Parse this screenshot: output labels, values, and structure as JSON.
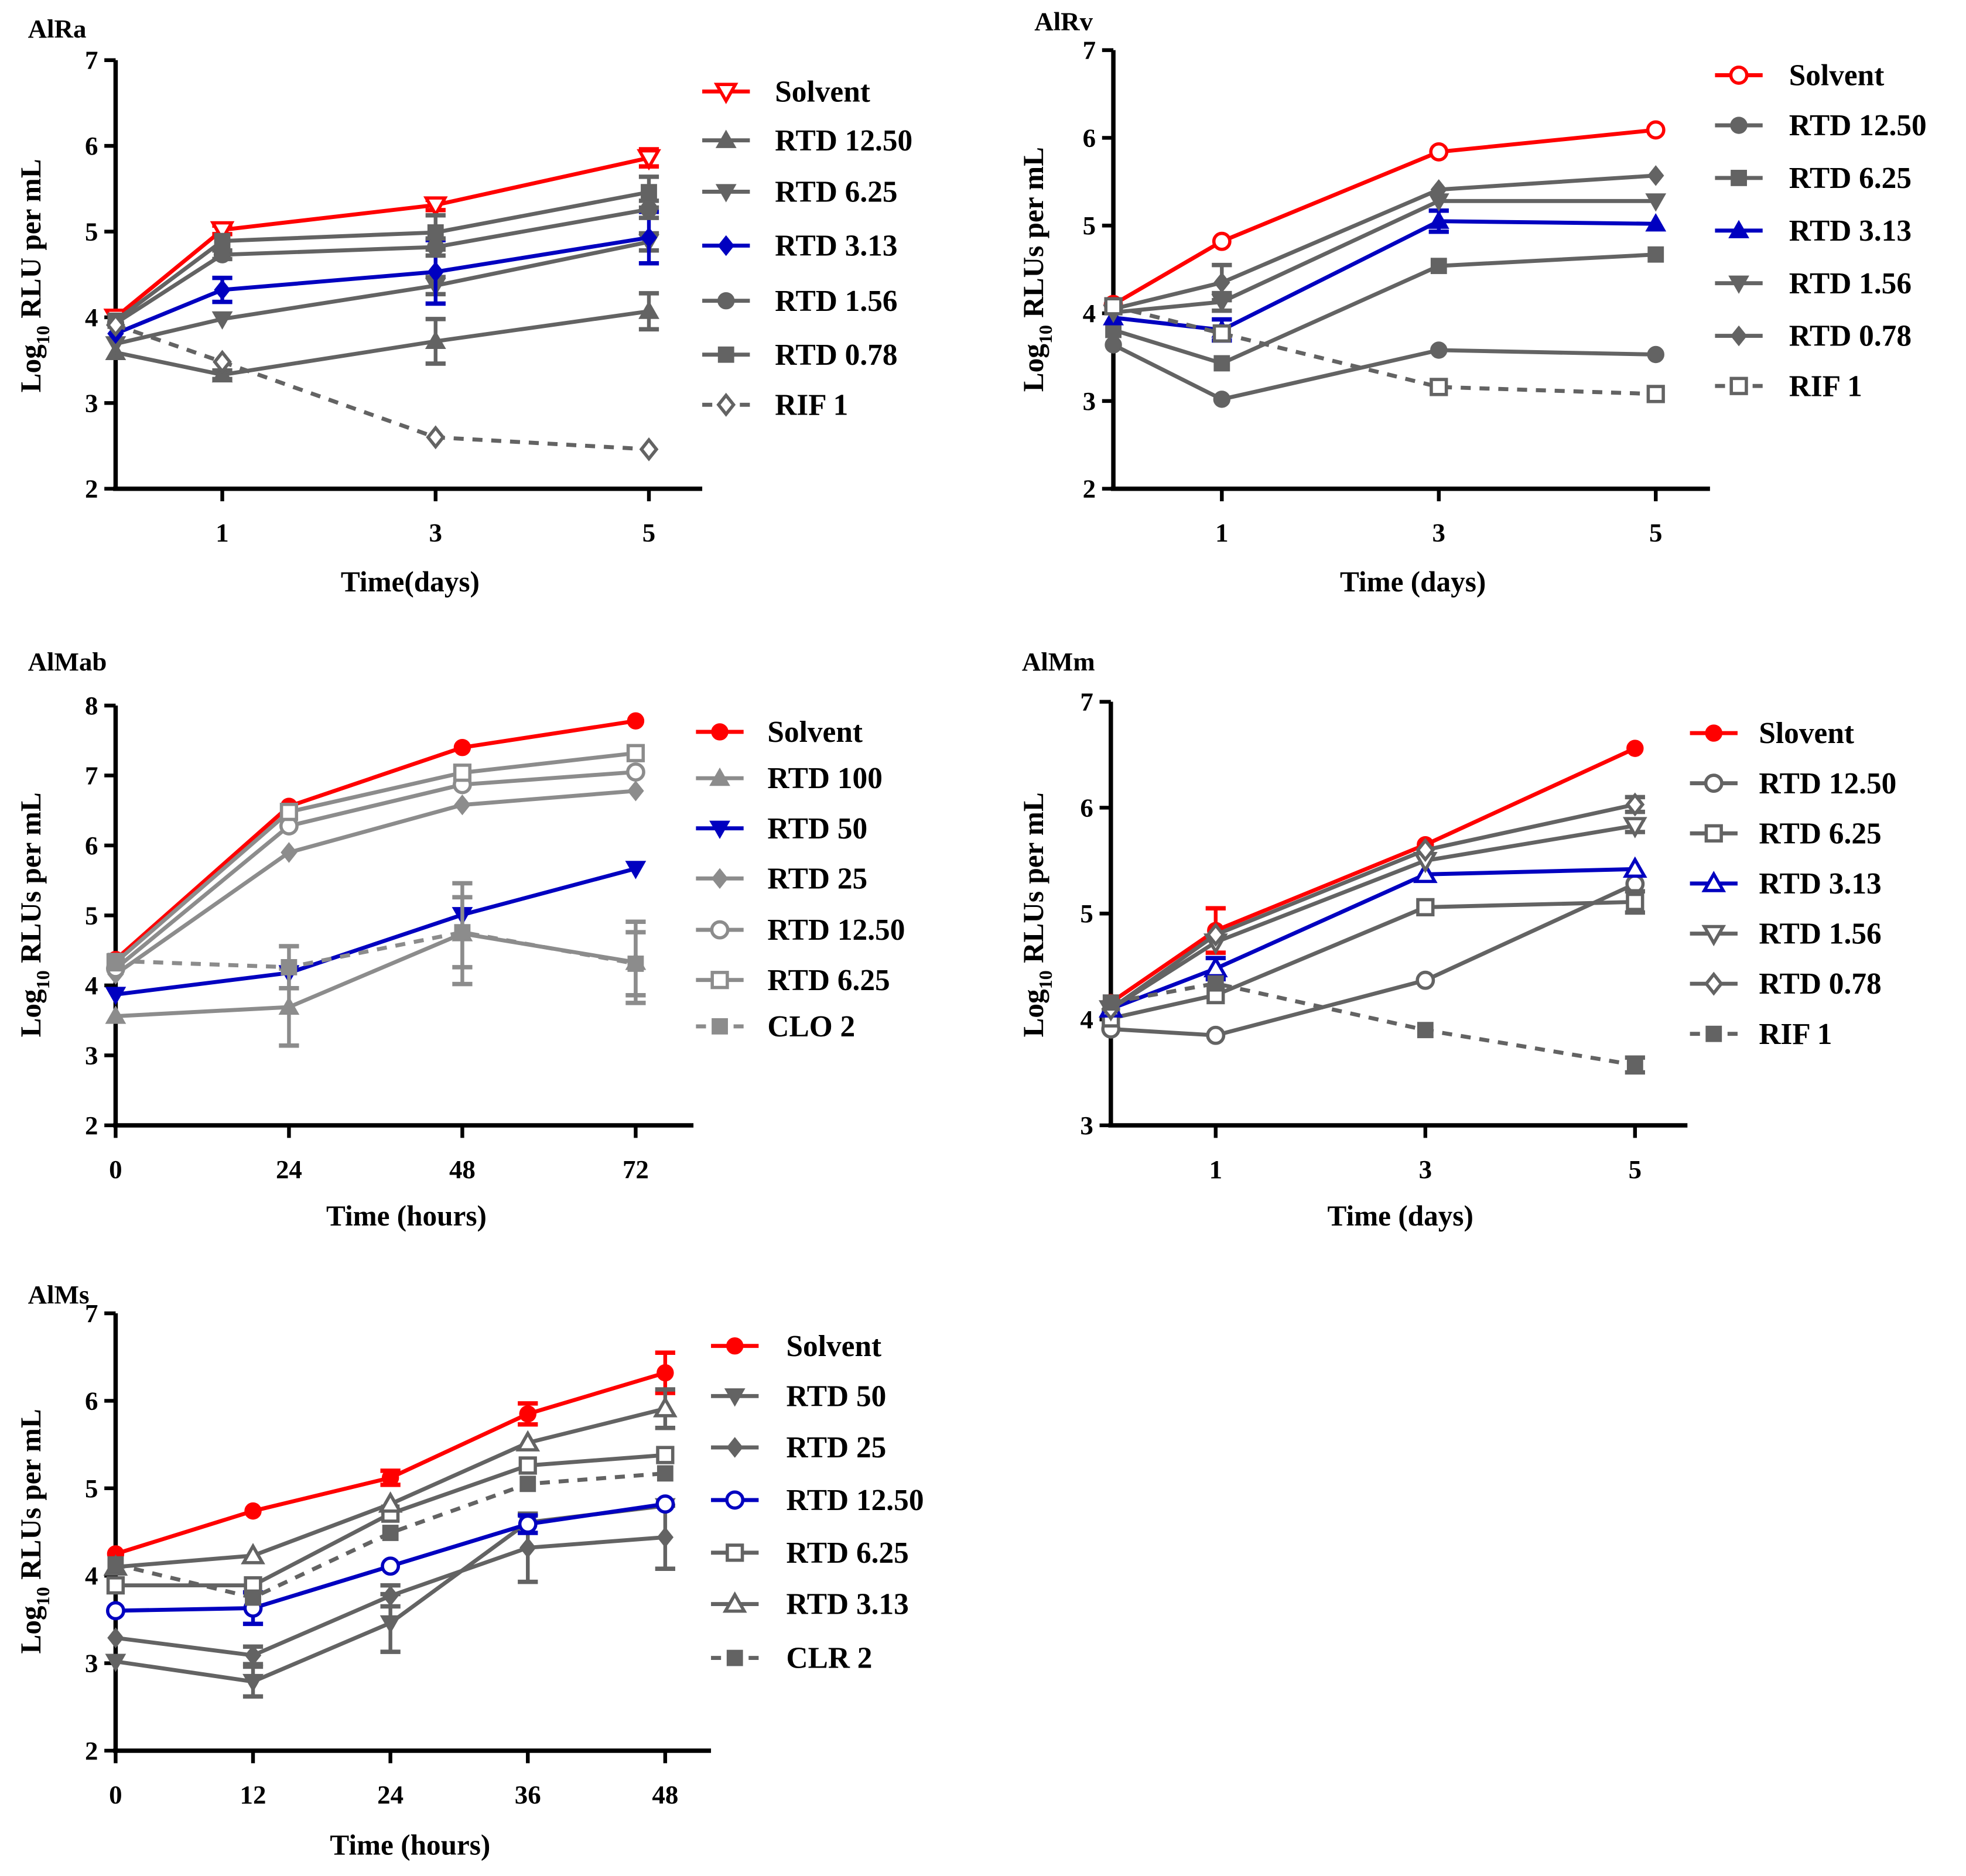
{
  "colors": {
    "red": "#ff0000",
    "blue": "#0000c0",
    "gray": "#636363",
    "lightgray": "#8c8c8c"
  },
  "chart_data": [
    {
      "type": "line",
      "title": "AlRa",
      "xlabel": "Time(days)",
      "ylabel": {
        "pre": "Log",
        "sub": "10",
        "post": " RLU per mL"
      },
      "xlim": [
        0,
        5.5
      ],
      "ylim": [
        2,
        7
      ],
      "xticks": [
        1,
        3,
        5
      ],
      "yticks": [
        2,
        3,
        4,
        5,
        6,
        7
      ],
      "x": [
        0,
        1,
        3,
        5
      ],
      "legend": "right",
      "grid": false,
      "series": [
        {
          "name": "Solvent",
          "color": "#ff0000",
          "marker": "triangle-down-open",
          "dashed": false,
          "values": [
            4.0,
            5.02,
            5.31,
            5.86
          ],
          "err": [
            null,
            0.05,
            0.06,
            0.1
          ]
        },
        {
          "name": "RTD 12.50",
          "color": "#636363",
          "marker": "triangle-up",
          "dashed": false,
          "values": [
            3.59,
            3.33,
            3.72,
            4.07
          ],
          "err": [
            null,
            0.05,
            0.26,
            0.21
          ]
        },
        {
          "name": "RTD 6.25",
          "color": "#636363",
          "marker": "triangle-down",
          "dashed": false,
          "values": [
            3.69,
            3.98,
            4.37,
            4.88
          ],
          "err": [
            null,
            null,
            0.1,
            0.1
          ]
        },
        {
          "name": "RTD 3.13",
          "color": "#0000c0",
          "marker": "diamond",
          "dashed": false,
          "values": [
            3.81,
            4.32,
            4.53,
            4.93
          ],
          "err": [
            null,
            0.14,
            0.37,
            0.3
          ]
        },
        {
          "name": "RTD 1.56",
          "color": "#636363",
          "marker": "circle",
          "dashed": false,
          "values": [
            3.93,
            4.73,
            4.82,
            5.26
          ],
          "err": [
            null,
            0.05,
            0.1,
            0.1
          ]
        },
        {
          "name": "RTD 0.78",
          "color": "#636363",
          "marker": "square",
          "dashed": false,
          "values": [
            3.96,
            4.89,
            4.99,
            5.46
          ],
          "err": [
            null,
            null,
            0.2,
            0.18
          ]
        },
        {
          "name": "RIF 1",
          "color": "#636363",
          "marker": "diamond-open",
          "dashed": true,
          "values": [
            3.91,
            3.48,
            2.6,
            2.46
          ],
          "err": [
            null,
            null,
            null,
            null
          ]
        }
      ]
    },
    {
      "type": "line",
      "title": "AlRv",
      "xlabel": "Time (days)",
      "ylabel": {
        "pre": "Log",
        "sub": "10",
        "post": " RLUs per mL"
      },
      "xlim": [
        0,
        5.5
      ],
      "ylim": [
        2,
        7
      ],
      "xticks": [
        1,
        3,
        5
      ],
      "yticks": [
        2,
        3,
        4,
        5,
        6,
        7
      ],
      "x": [
        0,
        1,
        3,
        5
      ],
      "legend": "right",
      "grid": false,
      "series": [
        {
          "name": "Solvent",
          "color": "#ff0000",
          "marker": "circle-open",
          "dashed": false,
          "values": [
            4.1,
            4.82,
            5.84,
            6.09
          ],
          "err": [
            null,
            null,
            null,
            null
          ]
        },
        {
          "name": "RTD 12.50",
          "color": "#636363",
          "marker": "circle",
          "dashed": false,
          "values": [
            3.64,
            3.02,
            3.58,
            3.53
          ],
          "err": [
            null,
            null,
            null,
            null
          ]
        },
        {
          "name": "RTD 6.25",
          "color": "#636363",
          "marker": "square",
          "dashed": false,
          "values": [
            3.81,
            3.43,
            4.54,
            4.67
          ],
          "err": [
            null,
            null,
            null,
            null
          ]
        },
        {
          "name": "RTD 3.13",
          "color": "#0000c0",
          "marker": "triangle-up",
          "dashed": false,
          "values": [
            3.95,
            3.81,
            5.05,
            5.02
          ],
          "err": [
            null,
            0.12,
            0.12,
            null
          ]
        },
        {
          "name": "RTD 1.56",
          "color": "#636363",
          "marker": "triangle-down",
          "dashed": false,
          "values": [
            4.01,
            4.13,
            5.28,
            5.28
          ],
          "err": [
            null,
            0.1,
            null,
            null
          ]
        },
        {
          "name": "RTD 0.78",
          "color": "#636363",
          "marker": "diamond",
          "dashed": false,
          "values": [
            4.05,
            4.35,
            5.41,
            5.57
          ],
          "err": [
            null,
            0.2,
            null,
            null
          ]
        },
        {
          "name": "RIF 1",
          "color": "#636363",
          "marker": "square-open",
          "dashed": true,
          "values": [
            4.08,
            3.77,
            3.16,
            3.08
          ],
          "err": [
            null,
            null,
            null,
            null
          ]
        }
      ]
    },
    {
      "type": "line",
      "title": "AlMab",
      "xlabel": "Time (hours)",
      "ylabel": {
        "pre": "Log",
        "sub": "10",
        "post": " RLUs per mL"
      },
      "xlim": [
        0,
        80
      ],
      "ylim": [
        2,
        8
      ],
      "xticks": [
        0,
        24,
        48,
        72
      ],
      "yticks": [
        2,
        3,
        4,
        5,
        6,
        7,
        8
      ],
      "x": [
        0,
        24,
        48,
        72
      ],
      "legend": "right",
      "grid": false,
      "series": [
        {
          "name": "Solvent",
          "color": "#ff0000",
          "marker": "circle",
          "dashed": false,
          "values": [
            4.37,
            6.56,
            7.4,
            7.78
          ],
          "err": [
            null,
            null,
            null,
            null
          ]
        },
        {
          "name": "RTD 100",
          "color": "#8c8c8c",
          "marker": "triangle-up",
          "dashed": false,
          "values": [
            3.56,
            3.69,
            4.74,
            4.33
          ],
          "err": [
            null,
            0.55,
            0.72,
            0.58
          ]
        },
        {
          "name": "RTD 50",
          "color": "#0000c0",
          "marker": "triangle-down",
          "dashed": false,
          "values": [
            3.87,
            4.18,
            5.01,
            5.67
          ],
          "err": [
            null,
            null,
            null,
            null
          ]
        },
        {
          "name": "RTD 25",
          "color": "#8c8c8c",
          "marker": "diamond",
          "dashed": false,
          "values": [
            4.16,
            5.9,
            6.58,
            6.78
          ],
          "err": [
            null,
            null,
            null,
            null
          ]
        },
        {
          "name": "RTD 12.50",
          "color": "#8c8c8c",
          "marker": "circle-open",
          "dashed": false,
          "values": [
            4.24,
            6.28,
            6.87,
            7.05
          ],
          "err": [
            null,
            null,
            null,
            null
          ]
        },
        {
          "name": "RTD 6.25",
          "color": "#8c8c8c",
          "marker": "square-open",
          "dashed": false,
          "values": [
            4.33,
            6.48,
            7.04,
            7.32
          ],
          "err": [
            null,
            null,
            null,
            null
          ]
        },
        {
          "name": "CLO 2",
          "color": "#8c8c8c",
          "marker": "square",
          "dashed": true,
          "values": [
            4.35,
            4.26,
            4.76,
            4.31
          ],
          "err": [
            null,
            0.3,
            0.5,
            0.45
          ]
        }
      ]
    },
    {
      "type": "line",
      "title": "AlMm",
      "xlabel": "Time (days)",
      "ylabel": {
        "pre": "Log",
        "sub": "10",
        "post": " RLUs per mL"
      },
      "xlim": [
        0,
        5.5
      ],
      "ylim": [
        3,
        7
      ],
      "xticks": [
        1,
        3,
        5
      ],
      "yticks": [
        3,
        4,
        5,
        6,
        7
      ],
      "x": [
        0,
        1,
        3,
        5
      ],
      "legend": "right",
      "grid": false,
      "series": [
        {
          "name": "Slovent",
          "color": "#ff0000",
          "marker": "circle",
          "dashed": false,
          "values": [
            4.16,
            4.84,
            5.65,
            6.56
          ],
          "err": [
            null,
            0.21,
            null,
            null
          ]
        },
        {
          "name": "RTD 12.50",
          "color": "#636363",
          "marker": "circle-open",
          "dashed": false,
          "values": [
            3.91,
            3.85,
            4.37,
            5.28
          ],
          "err": [
            null,
            null,
            null,
            null
          ]
        },
        {
          "name": "RTD 6.25",
          "color": "#636363",
          "marker": "square-open",
          "dashed": false,
          "values": [
            4.01,
            4.23,
            5.06,
            5.11
          ],
          "err": [
            null,
            null,
            null,
            0.1
          ]
        },
        {
          "name": "RTD 3.13",
          "color": "#0000c0",
          "marker": "triangle-up-open",
          "dashed": false,
          "values": [
            4.1,
            4.48,
            5.37,
            5.42
          ],
          "err": [
            null,
            0.1,
            null,
            null
          ]
        },
        {
          "name": "RTD 1.56",
          "color": "#636363",
          "marker": "triangle-down-open",
          "dashed": false,
          "values": [
            4.1,
            4.73,
            5.5,
            5.83
          ],
          "err": [
            null,
            null,
            null,
            0.06
          ]
        },
        {
          "name": "RTD 0.78",
          "color": "#636363",
          "marker": "diamond-open",
          "dashed": false,
          "values": [
            4.1,
            4.8,
            5.6,
            6.03
          ],
          "err": [
            null,
            null,
            null,
            0.07
          ]
        },
        {
          "name": "RIF 1",
          "color": "#636363",
          "marker": "square",
          "dashed": true,
          "values": [
            4.16,
            4.34,
            3.9,
            3.57
          ],
          "err": [
            null,
            null,
            null,
            0.07
          ]
        }
      ]
    },
    {
      "type": "line",
      "title": "AlMs",
      "xlabel": "Time (hours)",
      "ylabel": {
        "pre": "Log",
        "sub": "10",
        "post": " RLUs per mL"
      },
      "xlim": [
        0,
        52
      ],
      "ylim": [
        2,
        7
      ],
      "xticks": [
        0,
        12,
        24,
        36,
        48
      ],
      "yticks": [
        2,
        3,
        4,
        5,
        6,
        7
      ],
      "x": [
        0,
        12,
        24,
        36,
        48
      ],
      "legend": "right",
      "grid": false,
      "series": [
        {
          "name": "Solvent",
          "color": "#ff0000",
          "marker": "circle",
          "dashed": false,
          "values": [
            4.25,
            4.74,
            5.12,
            5.85,
            6.32
          ],
          "err": [
            null,
            null,
            0.08,
            0.12,
            0.23
          ]
        },
        {
          "name": "RTD 50",
          "color": "#636363",
          "marker": "triangle-down",
          "dashed": false,
          "values": [
            3.02,
            2.79,
            3.46,
            4.61,
            4.8
          ],
          "err": [
            null,
            0.17,
            0.33,
            null,
            null
          ]
        },
        {
          "name": "RTD 25",
          "color": "#636363",
          "marker": "diamond",
          "dashed": false,
          "values": [
            3.29,
            3.09,
            3.77,
            4.32,
            4.44
          ],
          "err": [
            null,
            0.1,
            0.12,
            0.39,
            0.36
          ]
        },
        {
          "name": "RTD 12.50",
          "color": "#0000c0",
          "marker": "circle-open",
          "dashed": false,
          "values": [
            3.6,
            3.63,
            4.11,
            4.59,
            4.82
          ],
          "err": [
            null,
            0.18,
            null,
            0.1,
            null
          ]
        },
        {
          "name": "RTD 6.25",
          "color": "#636363",
          "marker": "square-open",
          "dashed": false,
          "values": [
            3.89,
            3.89,
            4.71,
            5.26,
            5.38
          ],
          "err": [
            null,
            null,
            null,
            null,
            null
          ]
        },
        {
          "name": "RTD 3.13",
          "color": "#636363",
          "marker": "triangle-up-open",
          "dashed": false,
          "values": [
            4.1,
            4.23,
            4.82,
            5.52,
            5.91
          ],
          "err": [
            null,
            null,
            null,
            null,
            0.22
          ]
        },
        {
          "name": "CLR 2",
          "color": "#636363",
          "marker": "square",
          "dashed": true,
          "values": [
            4.13,
            3.75,
            4.49,
            5.05,
            5.17
          ],
          "err": [
            null,
            null,
            null,
            null,
            null
          ]
        }
      ]
    }
  ]
}
